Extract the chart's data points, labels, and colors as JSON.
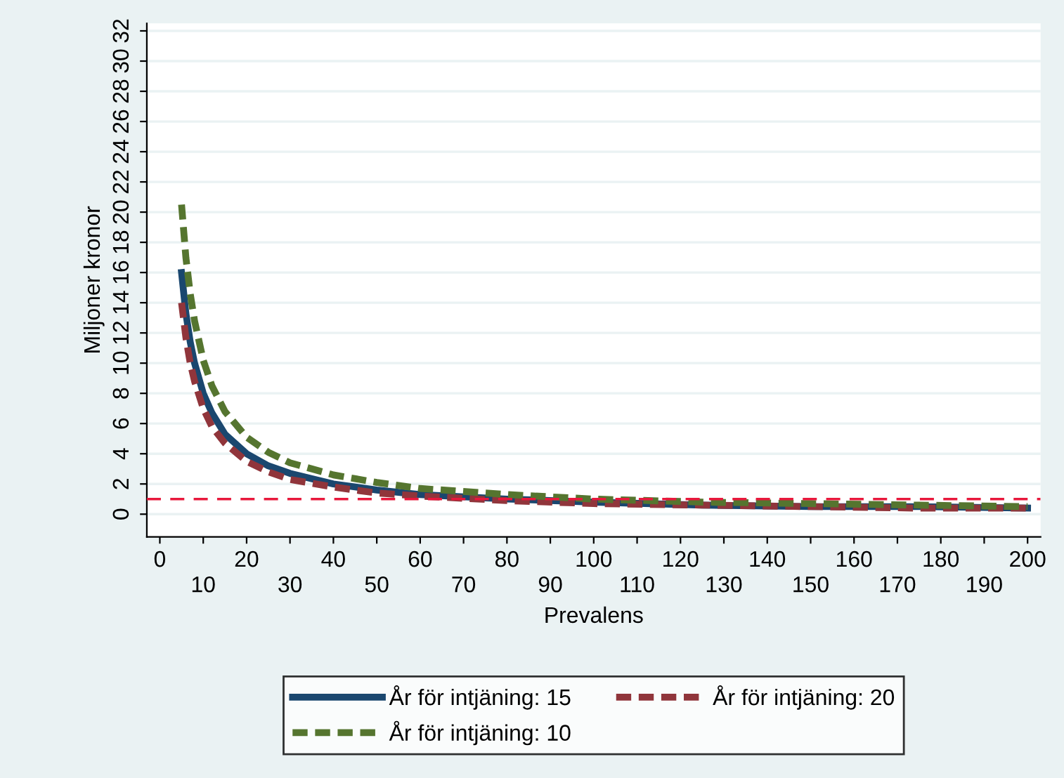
{
  "chart_data": {
    "type": "line",
    "xlabel": "Prevalens",
    "ylabel": "Miljoner kronor",
    "series": [
      {
        "name": "År för intjäning: 15",
        "color": "#1a476f",
        "line_style": "solid",
        "x": [
          5,
          6,
          7,
          8,
          10,
          12,
          15,
          20,
          25,
          30,
          40,
          50,
          60,
          80,
          100,
          125,
          150,
          175,
          200
        ],
        "values": [
          16,
          13.3,
          11.4,
          10,
          8,
          6.7,
          5.3,
          4,
          3.2,
          2.7,
          2,
          1.6,
          1.3,
          1,
          0.8,
          0.6,
          0.5,
          0.5,
          0.4
        ]
      },
      {
        "name": "År för intjäning: 20",
        "color": "#90353b",
        "line_style": "dashed",
        "x": [
          5,
          6,
          7,
          8,
          10,
          12,
          15,
          20,
          25,
          30,
          40,
          50,
          60,
          80,
          100,
          125,
          150,
          175,
          200
        ],
        "values": [
          14,
          11.7,
          10,
          8.8,
          7,
          5.8,
          4.7,
          3.5,
          2.8,
          2.3,
          1.8,
          1.4,
          1.2,
          0.9,
          0.7,
          0.6,
          0.5,
          0.4,
          0.4
        ]
      },
      {
        "name": "År för intjäning: 10",
        "color": "#55752f",
        "line_style": "dashed",
        "x": [
          5,
          6,
          7,
          8,
          10,
          12,
          15,
          20,
          25,
          30,
          40,
          50,
          60,
          80,
          100,
          125,
          150,
          175,
          200
        ],
        "values": [
          20.5,
          17,
          14.6,
          12.8,
          10.2,
          8.5,
          6.8,
          5.1,
          4.1,
          3.4,
          2.6,
          2.1,
          1.7,
          1.3,
          1,
          0.8,
          0.7,
          0.6,
          0.5
        ]
      }
    ],
    "xlim": [
      -3,
      203
    ],
    "xticks": [
      0,
      {
        "value": 10,
        "label": null
      },
      20,
      {
        "value": 30,
        "label": null
      },
      40,
      {
        "value": 50,
        "label": null
      },
      60,
      {
        "value": 70,
        "label": null
      },
      80,
      {
        "value": 90,
        "label": null
      },
      100,
      {
        "value": 110,
        "label": null
      },
      120,
      {
        "value": 130,
        "label": null
      },
      140,
      {
        "value": 150,
        "label": null
      },
      160,
      {
        "value": 170,
        "label": null
      },
      180,
      {
        "value": 190,
        "label": null
      },
      200
    ],
    "x2lim": [
      -3,
      203
    ],
    "x2ticks": [
      10,
      30,
      50,
      70,
      90,
      110,
      130,
      150,
      170,
      190
    ],
    "ylim": [
      -1.5,
      32.5
    ],
    "yticks": [
      0,
      2,
      4,
      6,
      8,
      10,
      12,
      14,
      16,
      18,
      20,
      22,
      24,
      26,
      28,
      30,
      32
    ],
    "ref_lines": [
      {
        "axis": "y",
        "value": 1,
        "color": "#e8183c",
        "line_style": "dashed"
      }
    ],
    "grid": "y",
    "legend": "bottom"
  }
}
